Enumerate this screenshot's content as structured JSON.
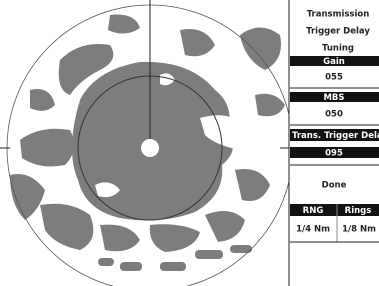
{
  "menu": {
    "items": [
      "Transmission",
      "Trigger Delay",
      "Tuning"
    ],
    "gain": {
      "label": "Gain",
      "value": "055"
    },
    "mbs": {
      "label": "MBS",
      "value": "050"
    },
    "trans_trigger_delay": {
      "label": "Trans. Trigger Dela",
      "value": "095"
    },
    "done": "Done",
    "table": {
      "headers": [
        "RNG",
        "Rings"
      ],
      "values": [
        "1/4 Nm",
        "1/8 Nm"
      ]
    }
  }
}
